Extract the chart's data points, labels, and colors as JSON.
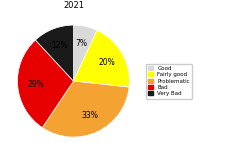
{
  "title": "2021",
  "labels": [
    "Good",
    "Fairly good",
    "Problematic",
    "Bad",
    "Very Bad"
  ],
  "values": [
    7,
    20,
    33,
    29,
    12
  ],
  "colors": [
    "#d9d9d9",
    "#ffff00",
    "#f4a232",
    "#e60000",
    "#1a1a1a"
  ],
  "startangle": 90,
  "background_color": "#ffffff",
  "title_fontsize": 6,
  "pct_fontsize": 5.5,
  "figsize": [
    2.37,
    1.59
  ],
  "dpi": 100
}
